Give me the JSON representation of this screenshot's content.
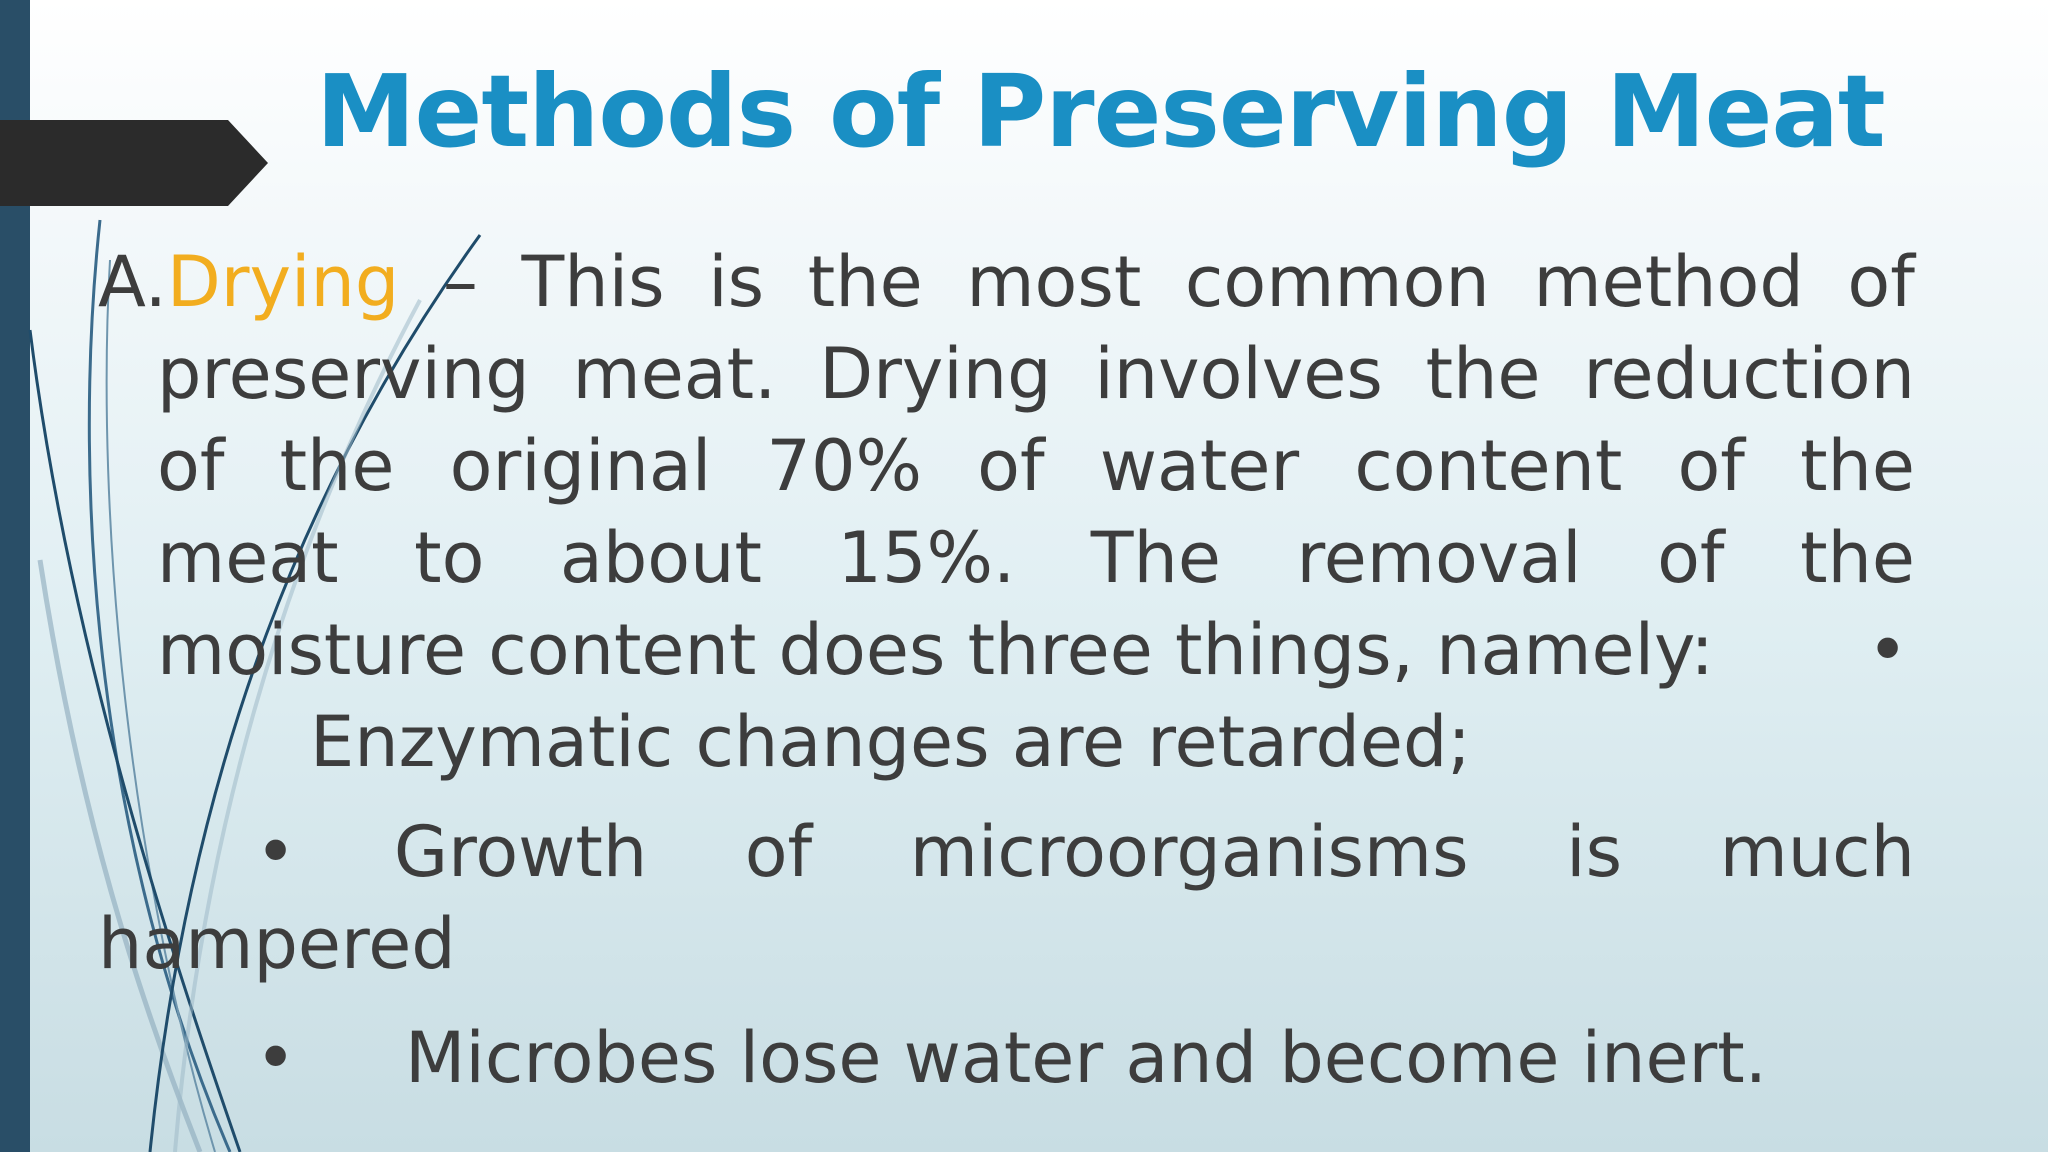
{
  "slide": {
    "title": "Methods of Preserving Meat",
    "colors": {
      "title": "#1a8fc4",
      "accent": "#f2ad1f",
      "body_text": "#3d3d3d",
      "left_bar": "#294e67",
      "arrow_tab": "#2b2b2b"
    },
    "body": {
      "item_letter": "A.",
      "item_term": "Drying",
      "line1_rest": [
        "–",
        "This",
        "is",
        "the",
        "most",
        "common",
        "method",
        "of"
      ],
      "line2": [
        "preserving",
        "meat.",
        "Drying",
        "involves",
        "the",
        "reduction"
      ],
      "line3": [
        "of",
        "the",
        "original",
        "70%",
        "of",
        "water",
        "content",
        "of",
        "the"
      ],
      "line4": [
        "meat",
        "to",
        "about",
        "15%.",
        "The",
        "removal",
        "of",
        "the"
      ],
      "line5": "moisture content does three things, namely:",
      "bullet_char": "•",
      "bullet1": "Enzymatic changes are retarded;",
      "bullet2_words": [
        "Growth",
        "of",
        "microorganisms",
        "is",
        "much"
      ],
      "bullet2_cont": "hampered",
      "bullet3": "Microbes lose water and become inert."
    }
  }
}
